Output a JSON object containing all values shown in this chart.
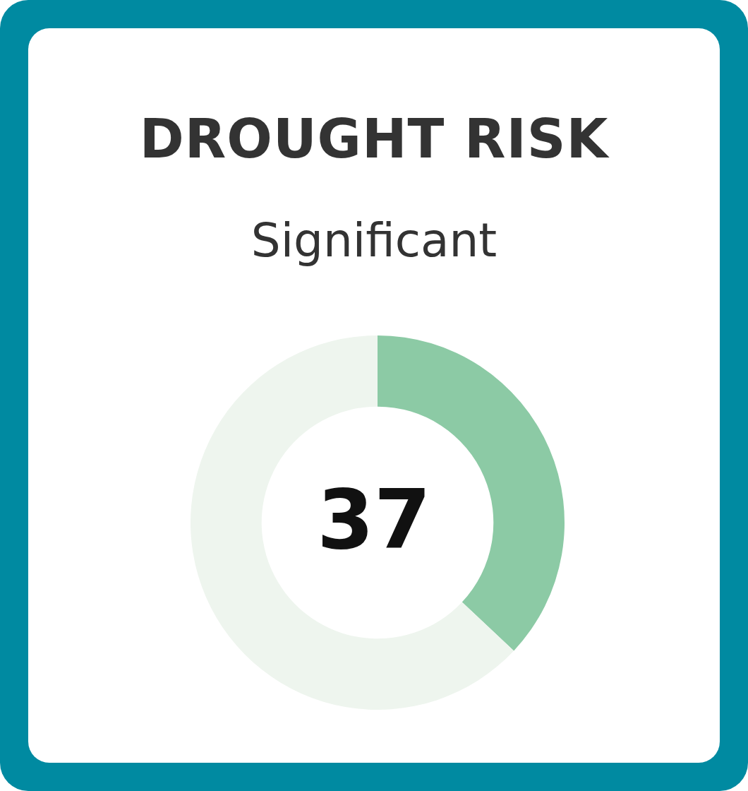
{
  "chart_data": {
    "type": "donut",
    "title": "DROUGHT RISK",
    "subtitle": "Significant",
    "categories": [
      null,
      null
    ],
    "values": [
      37,
      63
    ],
    "colors": [
      "#8ccaa5",
      "#eef5ee"
    ],
    "annotations": [
      "37"
    ]
  }
}
